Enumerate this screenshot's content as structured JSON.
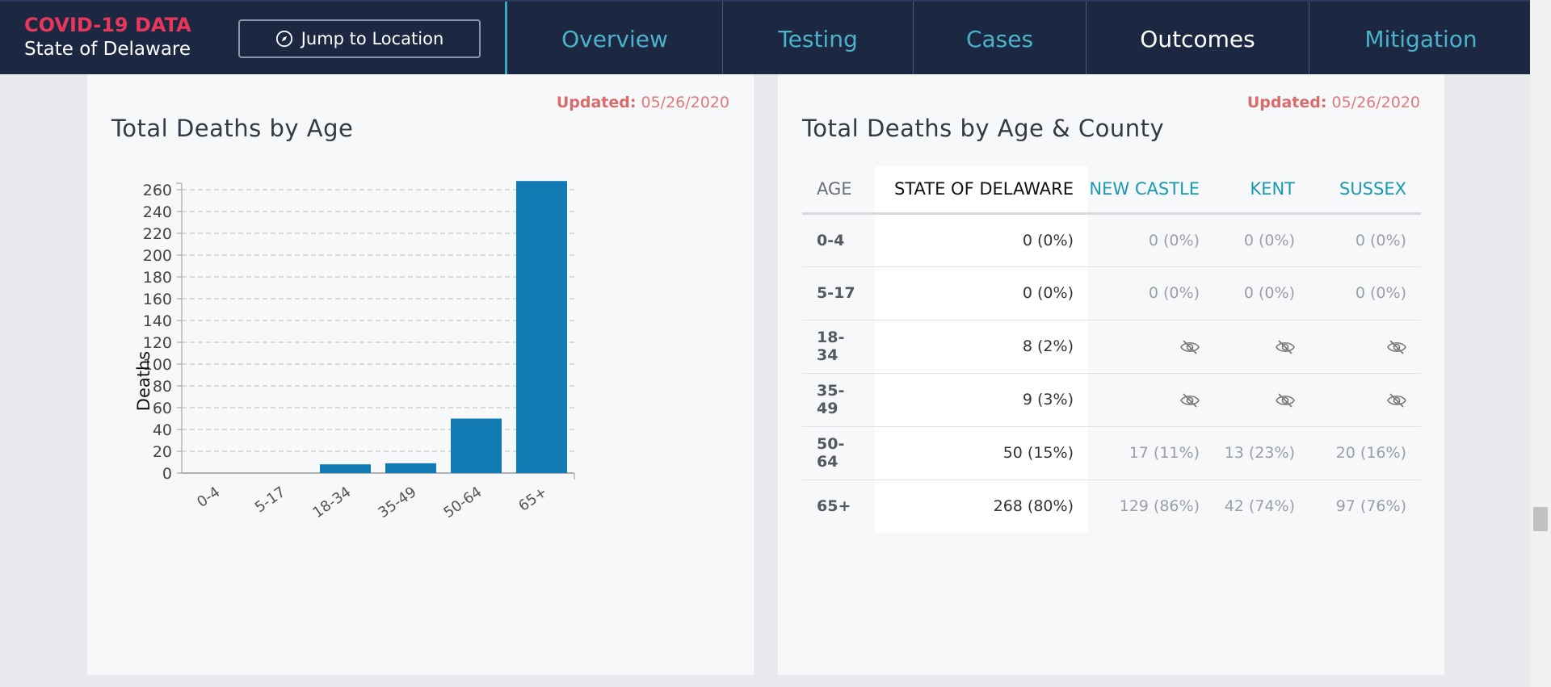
{
  "header": {
    "brand_title": "COVID-19 DATA",
    "brand_subtitle": "State of Delaware",
    "jump_button": "Jump to Location",
    "tabs": [
      {
        "label": "Overview",
        "active": false
      },
      {
        "label": "Testing",
        "active": false
      },
      {
        "label": "Cases",
        "active": false
      },
      {
        "label": "Outcomes",
        "active": true
      },
      {
        "label": "Mitigation",
        "active": false
      }
    ]
  },
  "left_card": {
    "updated_label": "Updated:",
    "updated_date": "05/26/2020",
    "title": "Total Deaths by Age"
  },
  "right_card": {
    "updated_label": "Updated:",
    "updated_date": "05/26/2020",
    "title": "Total Deaths by Age & County",
    "columns": [
      "AGE",
      "STATE OF DELAWARE",
      "NEW CASTLE",
      "KENT",
      "SUSSEX"
    ],
    "rows": [
      {
        "age": "0-4",
        "state": "0 (0%)",
        "new_castle": "0 (0%)",
        "kent": "0 (0%)",
        "sussex": "0 (0%)"
      },
      {
        "age": "5-17",
        "state": "0 (0%)",
        "new_castle": "0 (0%)",
        "kent": "0 (0%)",
        "sussex": "0 (0%)"
      },
      {
        "age": "18-34",
        "state": "8 (2%)",
        "new_castle": "hidden",
        "kent": "hidden",
        "sussex": "hidden"
      },
      {
        "age": "35-49",
        "state": "9 (3%)",
        "new_castle": "hidden",
        "kent": "hidden",
        "sussex": "hidden"
      },
      {
        "age": "50-64",
        "state": "50 (15%)",
        "new_castle": "17 (11%)",
        "kent": "13 (23%)",
        "sussex": "20 (16%)"
      },
      {
        "age": "65+",
        "state": "268 (80%)",
        "new_castle": "129 (86%)",
        "kent": "42 (74%)",
        "sussex": "97 (76%)"
      }
    ]
  },
  "chart_data": {
    "type": "bar",
    "title": "Total Deaths by Age",
    "ylabel": "Deaths",
    "xlabel": "",
    "categories": [
      "0-4",
      "5-17",
      "18-34",
      "35-49",
      "50-64",
      "65+"
    ],
    "values": [
      0,
      0,
      8,
      9,
      50,
      268
    ],
    "ylim": [
      0,
      295
    ],
    "yticks": [
      0,
      20,
      40,
      60,
      80,
      100,
      120,
      140,
      160,
      180,
      200,
      220,
      240,
      260
    ],
    "grid": true,
    "bar_color": "#137bb3"
  },
  "colors": {
    "header_bg": "#1c2741",
    "brand_red": "#e8375a",
    "nav_teal": "#4cb2cc",
    "updated": "#e07a7a",
    "bar": "#137bb3"
  }
}
